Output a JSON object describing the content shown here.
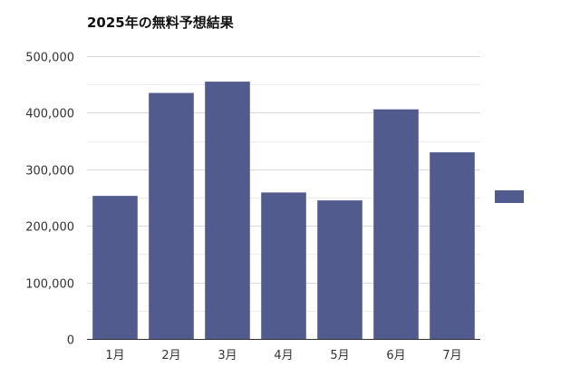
{
  "chart_data": {
    "type": "bar",
    "title": "2025年の無料予想結果",
    "categories": [
      "1月",
      "2月",
      "3月",
      "4月",
      "5月",
      "6月",
      "7月"
    ],
    "series": [
      {
        "values": [
          253000,
          435000,
          455000,
          259000,
          245000,
          406000,
          330000
        ]
      }
    ],
    "xlabel": "",
    "ylabel": "",
    "ylim": [
      0,
      500000
    ],
    "yticks": [
      0,
      100000,
      200000,
      300000,
      400000,
      500000
    ],
    "ytick_labels": [
      "0",
      "100,000",
      "200,000",
      "300,000",
      "400,000",
      "500,000"
    ],
    "grid": true,
    "legend": "right",
    "bar_color": "#525b8e",
    "grid_color": "#d9d9d9",
    "axis_color": "#333333"
  }
}
